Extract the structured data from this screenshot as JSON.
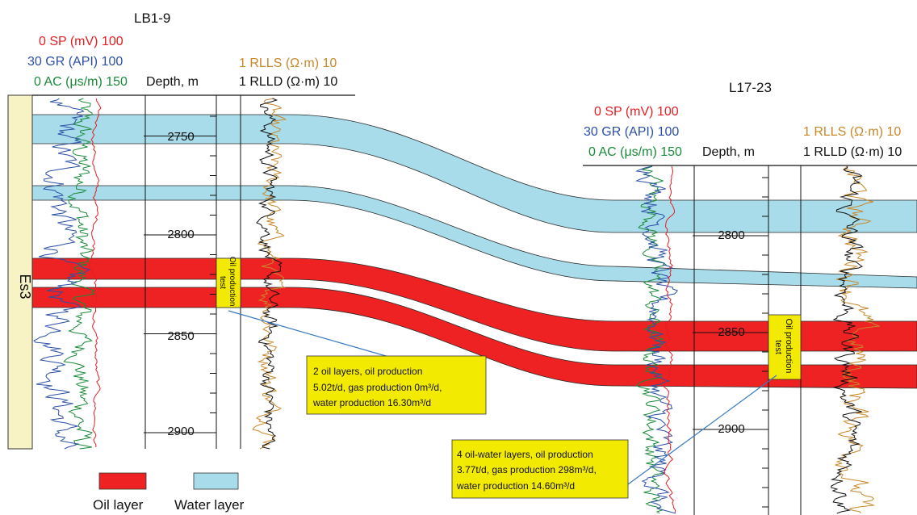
{
  "wells": {
    "left": {
      "name": "LB1-9",
      "curve_sp": "0 SP (mV) 100",
      "curve_gr": "30 GR (API) 100",
      "curve_ac": "0 AC (μs/m) 150",
      "depth_header": "Depth, m",
      "curve_rlls": "1 RLLS (Ω·m) 10",
      "curve_rlld": "1 RLLD (Ω·m) 10",
      "depth_labels": [
        "2750",
        "2800",
        "2850",
        "2900"
      ],
      "formation": "Es3",
      "test_tag": "Oil production test"
    },
    "right": {
      "name": "L17-23",
      "curve_sp": "0 SP (mV) 100",
      "curve_gr": "30 GR (API) 100",
      "curve_ac": "0 AC (μs/m) 150",
      "depth_header": "Depth, m",
      "curve_rlls": "1 RLLS (Ω·m) 10",
      "curve_rlld": "1 RLLD (Ω·m) 10",
      "depth_labels": [
        "2800",
        "2850",
        "2900"
      ],
      "test_tag": "Oil production test"
    }
  },
  "annotations": {
    "left": [
      "2 oil layers, oil production",
      "5.02t/d, gas production 0m³/d,",
      "water production 16.30m³/d"
    ],
    "right": [
      "4 oil-water layers, oil production",
      "3.77t/d, gas production 298m³/d,",
      "water production 14.60m³/d"
    ]
  },
  "legend": {
    "oil": "Oil layer",
    "water": "Water layer"
  },
  "colors": {
    "oil": "#ee2222",
    "water": "#a8dcea",
    "sp": "#e31e24",
    "gr": "#2b4fa8",
    "ac": "#1a8a3a",
    "rlls": "#c8882a",
    "rlld": "#111111",
    "formation": "#f7f3c4",
    "annotation": "#f2ea00"
  }
}
